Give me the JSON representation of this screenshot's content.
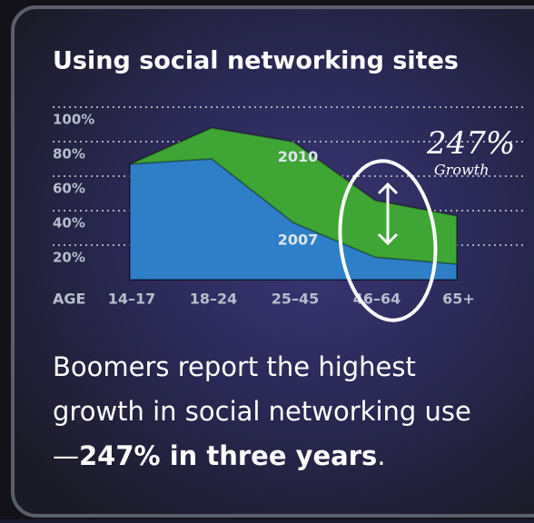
{
  "chart_data": {
    "type": "area",
    "title": "Using social networking sites",
    "x_label": "AGE",
    "categories": [
      "14–17",
      "18–24",
      "25–45",
      "46–64",
      "65+"
    ],
    "series": [
      {
        "name": "2010",
        "color": "#3fa535",
        "values": [
          67,
          88,
          80,
          46,
          37
        ]
      },
      {
        "name": "2007",
        "color": "#2f7fc8",
        "values": [
          67,
          70,
          33,
          13,
          9
        ]
      }
    ],
    "ylim": [
      0,
      100
    ],
    "yticks": [
      {
        "value": 20,
        "label": "20%"
      },
      {
        "value": 40,
        "label": "40%"
      },
      {
        "value": 60,
        "label": "60%"
      },
      {
        "value": 80,
        "label": "80%"
      },
      {
        "value": 100,
        "label": "100%"
      }
    ],
    "grid": true,
    "annotation": {
      "value": "247%",
      "note": "Growth"
    },
    "caption": {
      "text": "Boomers report the highest growth in social networking use—",
      "emphasis": "247% in three years",
      "end": "."
    }
  }
}
